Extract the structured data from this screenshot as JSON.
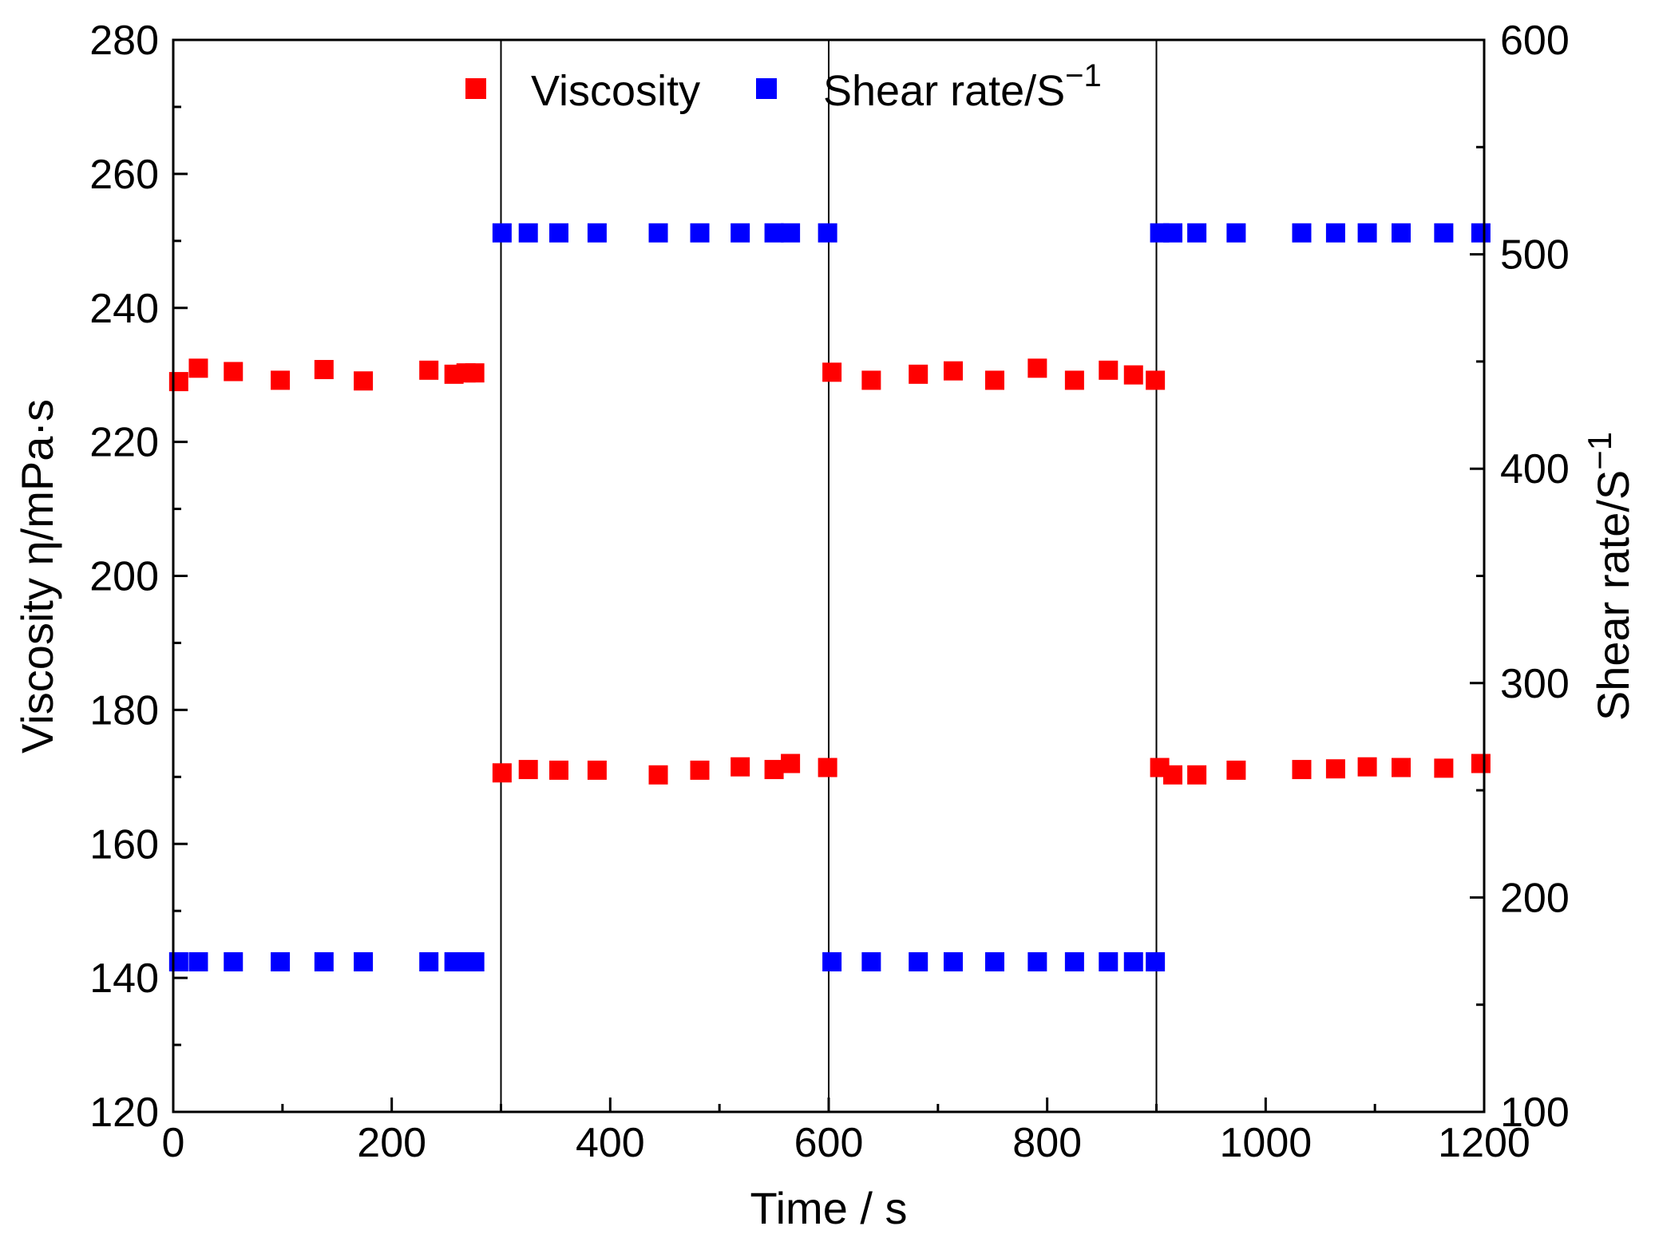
{
  "chart_data": {
    "type": "scatter",
    "xlabel": "Time / s",
    "ylabel_left": "Viscosity η/mPa·s",
    "ylabel_right": "Shear rate/S",
    "ylabel_right_sup": "−1",
    "xlim": [
      0,
      1200
    ],
    "ylim_left": [
      120,
      280
    ],
    "ylim_right": [
      100,
      600
    ],
    "x_ticks": [
      0,
      200,
      400,
      600,
      800,
      1000,
      1200
    ],
    "x_tick_labels": [
      "0",
      "200",
      "400",
      "600",
      "800",
      "1000",
      "1200"
    ],
    "y_left_ticks": [
      120,
      140,
      160,
      180,
      200,
      220,
      240,
      260,
      280
    ],
    "y_left_tick_labels": [
      "120",
      "140",
      "160",
      "180",
      "200",
      "220",
      "240",
      "260",
      "280"
    ],
    "y_right_ticks": [
      100,
      200,
      300,
      400,
      500,
      600
    ],
    "y_right_tick_labels": [
      "100",
      "200",
      "300",
      "400",
      "500",
      "600"
    ],
    "divider_lines_x": [
      300,
      600,
      900
    ],
    "legend": {
      "viscosity_label": "Viscosity",
      "shear_label_main": "Shear rate/S",
      "shear_label_sup": "−1"
    },
    "series": [
      {
        "name": "Viscosity",
        "axis": "left",
        "color": "#ff0000",
        "points": [
          [
            5,
            229.0
          ],
          [
            23,
            231.0
          ],
          [
            55,
            230.5
          ],
          [
            98,
            229.2
          ],
          [
            138,
            230.8
          ],
          [
            174,
            229.1
          ],
          [
            234,
            230.7
          ],
          [
            257,
            230.1
          ],
          [
            268,
            230.3
          ],
          [
            276,
            230.3
          ],
          [
            301,
            170.6
          ],
          [
            325,
            171.1
          ],
          [
            353,
            171.0
          ],
          [
            388,
            171.0
          ],
          [
            444,
            170.3
          ],
          [
            482,
            171.0
          ],
          [
            519,
            171.5
          ],
          [
            550,
            171.1
          ],
          [
            565,
            172.0
          ],
          [
            599,
            171.4
          ],
          [
            603,
            230.4
          ],
          [
            639,
            229.2
          ],
          [
            682,
            230.1
          ],
          [
            714,
            230.6
          ],
          [
            752,
            229.2
          ],
          [
            791,
            231.0
          ],
          [
            825,
            229.2
          ],
          [
            856,
            230.7
          ],
          [
            879,
            230.0
          ],
          [
            899,
            229.2
          ],
          [
            903,
            171.4
          ],
          [
            915,
            170.3
          ],
          [
            937,
            170.3
          ],
          [
            973,
            171.0
          ],
          [
            1033,
            171.1
          ],
          [
            1064,
            171.2
          ],
          [
            1093,
            171.5
          ],
          [
            1124,
            171.4
          ],
          [
            1163,
            171.3
          ],
          [
            1197,
            172.0
          ]
        ]
      },
      {
        "name": "Shear rate/S−1",
        "axis": "right",
        "color": "#0000ff",
        "points": [
          [
            5,
            170
          ],
          [
            23,
            170
          ],
          [
            55,
            170
          ],
          [
            98,
            170
          ],
          [
            138,
            170
          ],
          [
            174,
            170
          ],
          [
            234,
            170
          ],
          [
            257,
            170
          ],
          [
            268,
            170
          ],
          [
            276,
            170
          ],
          [
            301,
            510
          ],
          [
            325,
            510
          ],
          [
            353,
            510
          ],
          [
            388,
            510
          ],
          [
            444,
            510
          ],
          [
            482,
            510
          ],
          [
            519,
            510
          ],
          [
            550,
            510
          ],
          [
            565,
            510
          ],
          [
            599,
            510
          ],
          [
            603,
            170
          ],
          [
            639,
            170
          ],
          [
            682,
            170
          ],
          [
            714,
            170
          ],
          [
            752,
            170
          ],
          [
            791,
            170
          ],
          [
            825,
            170
          ],
          [
            856,
            170
          ],
          [
            879,
            170
          ],
          [
            899,
            170
          ],
          [
            903,
            510
          ],
          [
            915,
            510
          ],
          [
            937,
            510
          ],
          [
            973,
            510
          ],
          [
            1033,
            510
          ],
          [
            1064,
            510
          ],
          [
            1093,
            510
          ],
          [
            1124,
            510
          ],
          [
            1163,
            510
          ],
          [
            1197,
            510
          ]
        ]
      }
    ]
  }
}
